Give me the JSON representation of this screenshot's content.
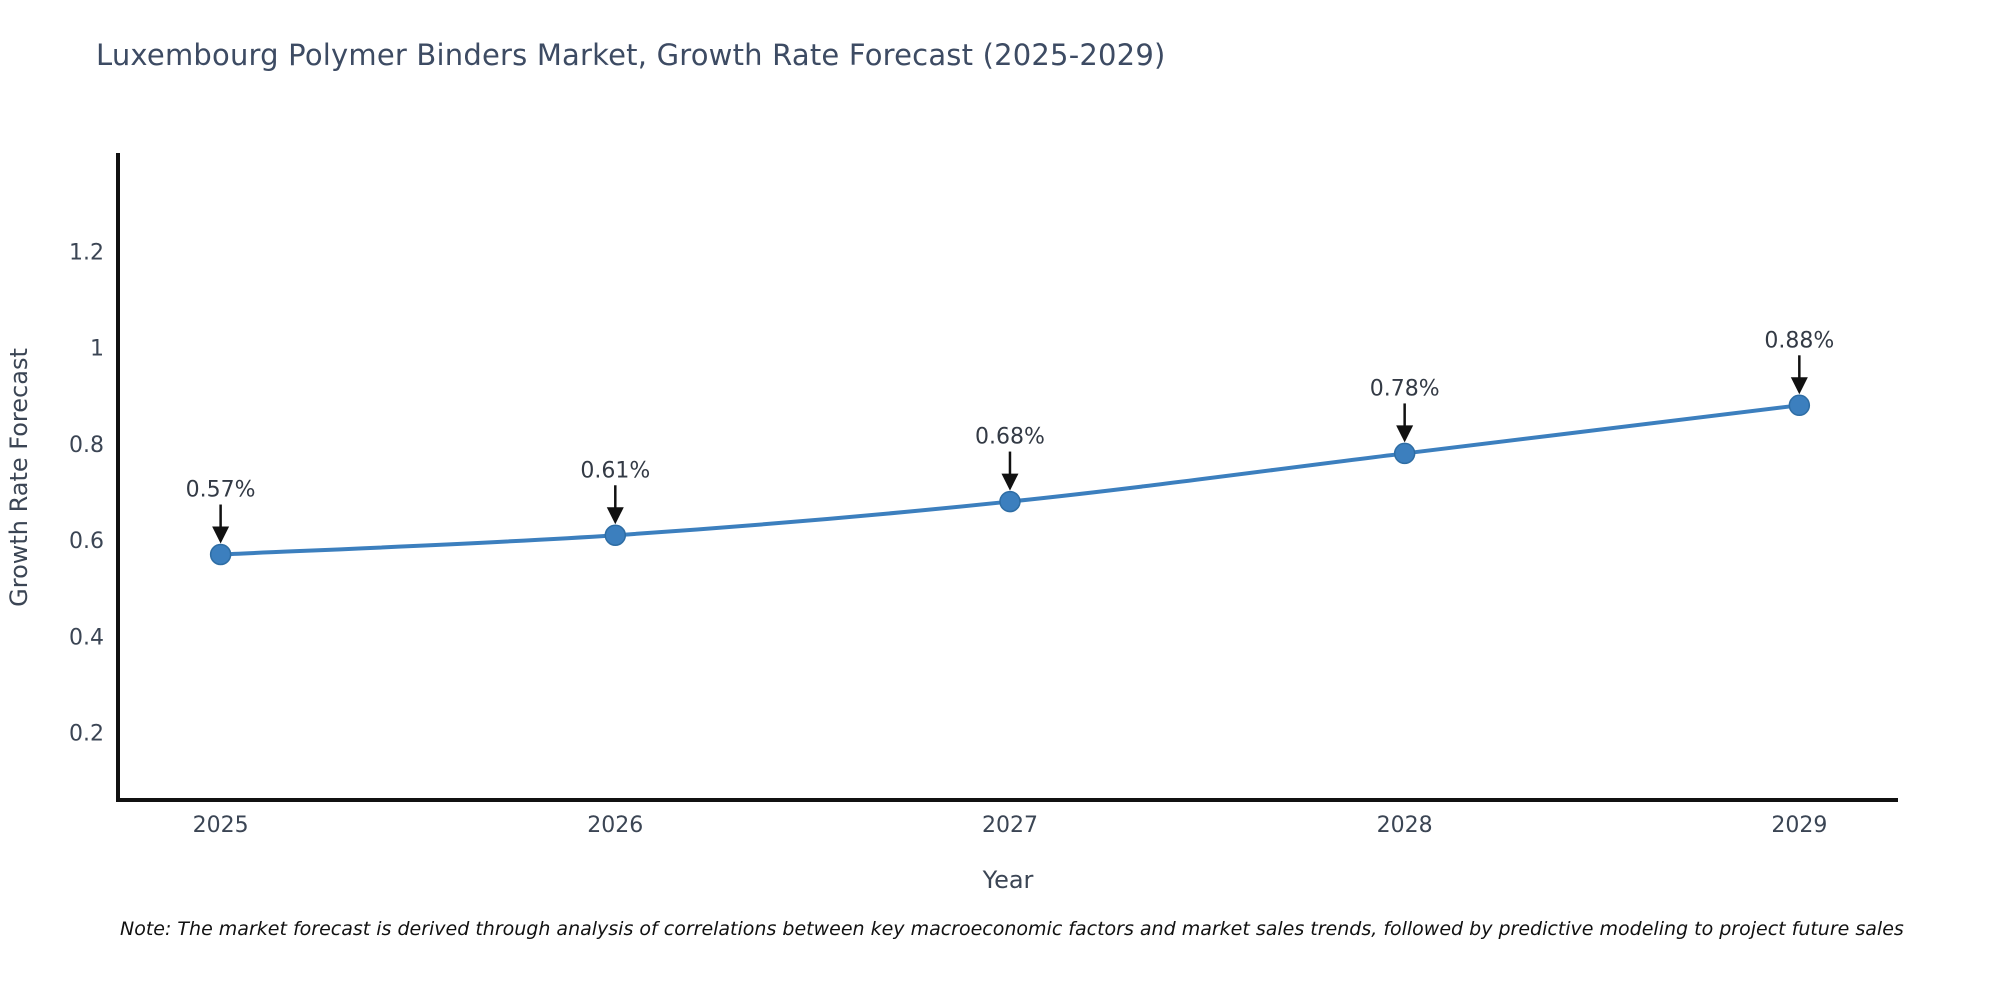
{
  "title": "Luxembourg Polymer Binders Market, Growth Rate Forecast (2025-2029)",
  "note": "Note: The market forecast is derived through analysis of correlations between key macroeconomic factors and market sales trends, followed by predictive modeling to project future sales",
  "chart_data": {
    "type": "line",
    "title": "Luxembourg Polymer Binders Market, Growth Rate Forecast (2025-2029)",
    "xlabel": "Year",
    "ylabel": "Growth Rate Forecast",
    "categories": [
      2025,
      2026,
      2027,
      2028,
      2029
    ],
    "values": [
      0.57,
      0.61,
      0.68,
      0.78,
      0.88
    ],
    "point_labels": [
      "0.57%",
      "0.61%",
      "0.68%",
      "0.78%",
      "0.88%"
    ],
    "ytickvals": [
      0.2,
      0.4,
      0.6,
      0.8,
      1.0,
      1.2
    ],
    "yticklabels": [
      "0.2",
      "0.4",
      "0.6",
      "0.8",
      "1",
      "1.2"
    ],
    "xticklabels": [
      "2025",
      "2026",
      "2027",
      "2028",
      "2029"
    ],
    "xlim": [
      2024.74,
      2029.25
    ],
    "ylim": [
      0.06,
      1.4
    ],
    "grid": false,
    "legend": "none",
    "line_shape": "spline",
    "colors": {
      "line": "#3c7fbe",
      "marker": "#3c7fbe",
      "marker_edge": "#2e6da4",
      "axis": "#111111",
      "tick_text": "#3b4554",
      "annotation_text": "#333a45",
      "arrow": "#111111",
      "title_text": "#3d4b63"
    }
  }
}
